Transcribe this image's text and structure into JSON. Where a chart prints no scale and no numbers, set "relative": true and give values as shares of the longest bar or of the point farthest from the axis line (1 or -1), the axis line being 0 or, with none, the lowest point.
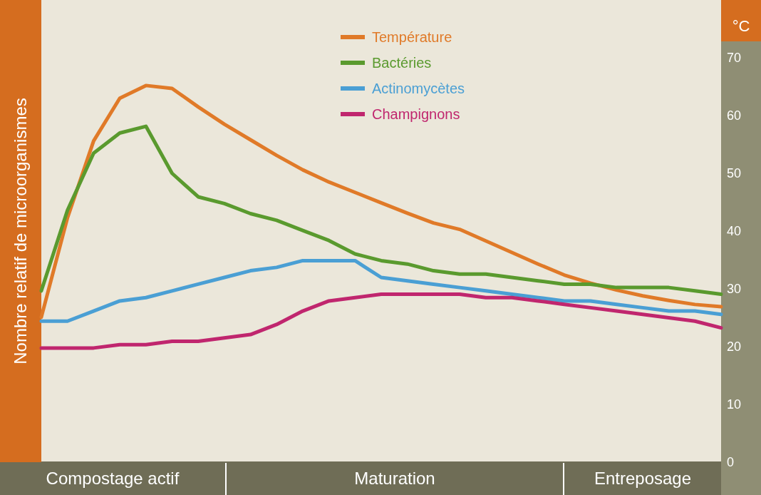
{
  "chart_data": [
    {
      "type": "line",
      "ylabel": "°C",
      "ylim": [
        0,
        70
      ],
      "yticks": [
        0,
        10,
        20,
        30,
        40,
        50,
        60,
        70
      ],
      "legend": "top",
      "categories": [
        null,
        null,
        null,
        null,
        null,
        null,
        null,
        null,
        null,
        null,
        null,
        null,
        null,
        null,
        null,
        null,
        null,
        null,
        null,
        null,
        null,
        null,
        null,
        null,
        null,
        null,
        null
      ],
      "series": [
        {
          "name": "Température",
          "color": "#e07a28",
          "values": [
            25.1,
            42.3,
            55.6,
            63,
            65.2,
            64.7,
            61.5,
            58.5,
            55.8,
            53.1,
            50.6,
            48.5,
            46.7,
            44.9,
            43.1,
            41.4,
            40.3,
            38.3,
            36.3,
            34.3,
            32.4,
            31,
            29.8,
            28.8,
            28,
            27.3,
            26.9
          ]
        }
      ]
    },
    {
      "type": "line",
      "ylabel": "Nombre relatif de microorganismes",
      "relative": true,
      "legend": "top",
      "categories": [
        null,
        null,
        null,
        null,
        null,
        null,
        null,
        null,
        null,
        null,
        null,
        null,
        null,
        null,
        null,
        null,
        null,
        null,
        null,
        null,
        null,
        null,
        null,
        null,
        null,
        null,
        null
      ],
      "annotations": [
        "Compostage actif",
        "Maturation",
        "Entreposage"
      ],
      "series": [
        {
          "name": "Bactéries",
          "color": "#5a9a2e",
          "values": [
            0.51,
            0.75,
            0.92,
            0.98,
            1,
            0.86,
            0.79,
            0.77,
            0.74,
            0.72,
            0.69,
            0.66,
            0.62,
            0.6,
            0.59,
            0.57,
            0.56,
            0.56,
            0.55,
            0.54,
            0.53,
            0.53,
            0.52,
            0.52,
            0.52,
            0.51,
            0.5
          ]
        },
        {
          "name": "Actinomycètes",
          "color": "#4a9fd4",
          "values": [
            0.42,
            0.42,
            0.45,
            0.48,
            0.49,
            0.51,
            0.53,
            0.55,
            0.57,
            0.58,
            0.6,
            0.6,
            0.6,
            0.55,
            0.54,
            0.53,
            0.52,
            0.51,
            0.5,
            0.49,
            0.48,
            0.48,
            0.47,
            0.46,
            0.45,
            0.45,
            0.44
          ]
        },
        {
          "name": "Champignons",
          "color": "#c0266e",
          "values": [
            0.34,
            0.34,
            0.34,
            0.35,
            0.35,
            0.36,
            0.36,
            0.37,
            0.38,
            0.41,
            0.45,
            0.48,
            0.49,
            0.5,
            0.5,
            0.5,
            0.5,
            0.49,
            0.49,
            0.48,
            0.47,
            0.46,
            0.45,
            0.44,
            0.43,
            0.42,
            0.4
          ]
        }
      ]
    }
  ]
}
